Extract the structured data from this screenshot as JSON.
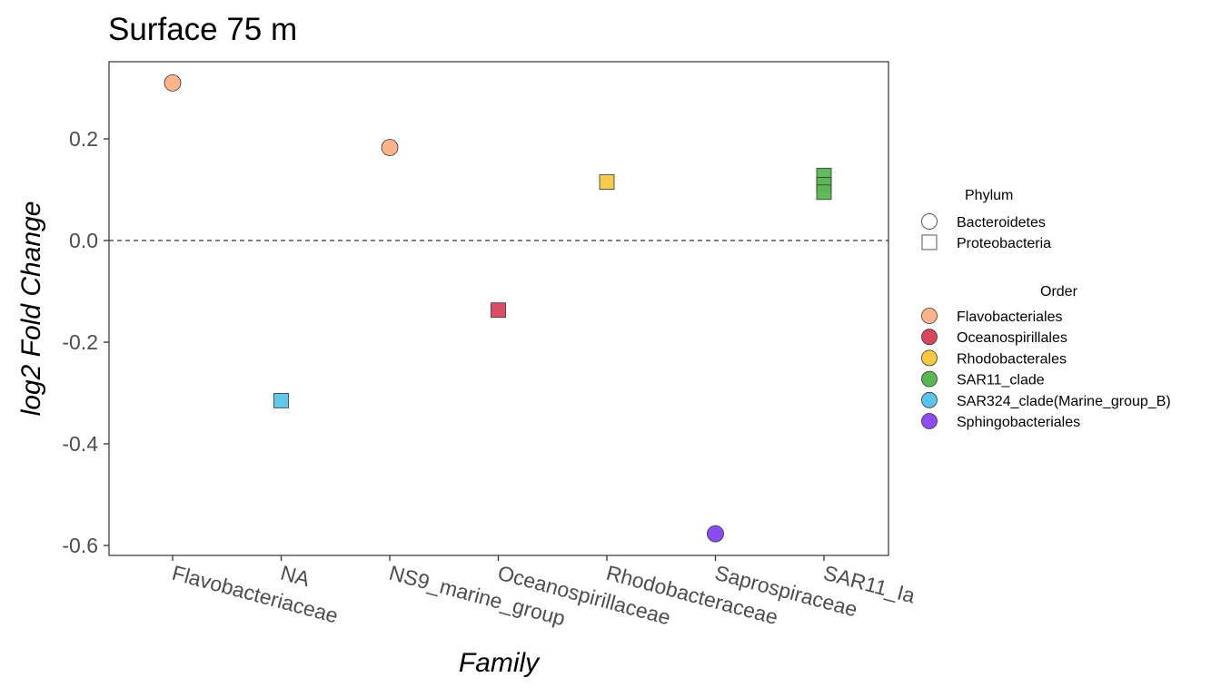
{
  "chart_data": {
    "type": "scatter",
    "title": "Surface 75 m",
    "xlabel": "Family",
    "ylabel": "log2 Fold Change",
    "categories": [
      "Flavobacteriaceae",
      "NA",
      "NS9_marine_group",
      "Oceanospirillaceae",
      "Rhodobacteraceae",
      "Saprospiraceae",
      "SAR11_Ia"
    ],
    "ylim": [
      -0.62,
      0.35
    ],
    "yticks": [
      {
        "value": 0.2,
        "label": "0.2"
      },
      {
        "value": 0.0,
        "label": "0.0"
      },
      {
        "value": -0.2,
        "label": "-0.2"
      },
      {
        "value": -0.4,
        "label": "-0.4"
      },
      {
        "value": -0.6,
        "label": "-0.6"
      }
    ],
    "reference_line": {
      "y": 0,
      "style": "dashed"
    },
    "grid": false,
    "legend_position": "right",
    "points": [
      {
        "family": "Flavobacteriaceae",
        "value": 0.31,
        "phylum": "Bacteroidetes",
        "order": "Flavobacteriales"
      },
      {
        "family": "NA",
        "value": -0.315,
        "phylum": "Proteobacteria",
        "order": "SAR324_clade(Marine_group_B)"
      },
      {
        "family": "NS9_marine_group",
        "value": 0.183,
        "phylum": "Bacteroidetes",
        "order": "Flavobacteriales"
      },
      {
        "family": "Oceanospirillaceae",
        "value": -0.137,
        "phylum": "Proteobacteria",
        "order": "Oceanospirillales"
      },
      {
        "family": "Rhodobacteraceae",
        "value": 0.115,
        "phylum": "Proteobacteria",
        "order": "Rhodobacterales"
      },
      {
        "family": "Saprospiraceae",
        "value": -0.577,
        "phylum": "Bacteroidetes",
        "order": "Sphingobacteriales"
      },
      {
        "family": "SAR11_Ia",
        "value": 0.128,
        "phylum": "Proteobacteria",
        "order": "SAR11_clade"
      },
      {
        "family": "SAR11_Ia",
        "value": 0.11,
        "phylum": "Proteobacteria",
        "order": "SAR11_clade"
      },
      {
        "family": "SAR11_Ia",
        "value": 0.095,
        "phylum": "Proteobacteria",
        "order": "SAR11_clade"
      }
    ],
    "legends": {
      "phylum": {
        "title": "Phylum",
        "items": [
          {
            "label": "Bacteroidetes",
            "shape": "circle"
          },
          {
            "label": "Proteobacteria",
            "shape": "square"
          }
        ]
      },
      "order": {
        "title": "Order",
        "items": [
          {
            "label": "Flavobacteriales",
            "color": "#fdb48c"
          },
          {
            "label": "Oceanospirillales",
            "color": "#d9455f"
          },
          {
            "label": "Rhodobacterales",
            "color": "#f7c843"
          },
          {
            "label": "SAR11_clade",
            "color": "#5ab552"
          },
          {
            "label": "SAR324_clade(Marine_group_B)",
            "color": "#5bc3ea"
          },
          {
            "label": "Sphingobacteriales",
            "color": "#8b4cf0"
          }
        ]
      }
    }
  }
}
